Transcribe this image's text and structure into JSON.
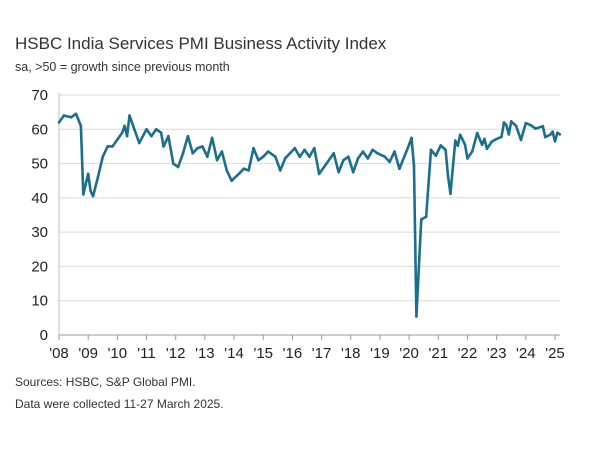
{
  "chart_data": {
    "type": "line",
    "title": "HSBC India Services PMI Business Activity Index",
    "subtitle": "sa, >50 = growth since previous month",
    "xlabel": "",
    "ylabel": "",
    "ylim": [
      0,
      70
    ],
    "yticks": [
      "0",
      "10",
      "20",
      "30",
      "40",
      "50",
      "60",
      "70"
    ],
    "xticks": [
      "'08",
      "'09",
      "'10",
      "'11",
      "'12",
      "'13",
      "'14",
      "'15",
      "'16",
      "'17",
      "'18",
      "'19",
      "'20",
      "'21",
      "'22",
      "'23",
      "'24",
      "'25"
    ],
    "grid": true,
    "line_color": "#1b6f8c",
    "series": [
      {
        "x": [
          "2008-01",
          "2008-03",
          "2008-06",
          "2008-08",
          "2008-10",
          "2008-11",
          "2009-01",
          "2009-02",
          "2009-03",
          "2009-05",
          "2009-07",
          "2009-09",
          "2009-11",
          "2010-01",
          "2010-03",
          "2010-04",
          "2010-05",
          "2010-06",
          "2010-08",
          "2010-10",
          "2011-01",
          "2011-03",
          "2011-05",
          "2011-07",
          "2011-08",
          "2011-10",
          "2011-12",
          "2012-02",
          "2012-04",
          "2012-06",
          "2012-08",
          "2012-10",
          "2012-12",
          "2013-02",
          "2013-04",
          "2013-06",
          "2013-08",
          "2013-10",
          "2013-12",
          "2014-03",
          "2014-05",
          "2014-07",
          "2014-09",
          "2014-11",
          "2015-01",
          "2015-03",
          "2015-06",
          "2015-08",
          "2015-10",
          "2015-12",
          "2016-02",
          "2016-04",
          "2016-06",
          "2016-08",
          "2016-10",
          "2016-12",
          "2017-03",
          "2017-06",
          "2017-08",
          "2017-10",
          "2017-12",
          "2018-02",
          "2018-04",
          "2018-06",
          "2018-08",
          "2018-10",
          "2018-12",
          "2019-03",
          "2019-05",
          "2019-07",
          "2019-09",
          "2019-11",
          "2020-01",
          "2020-02",
          "2020-03",
          "2020-04",
          "2020-06",
          "2020-08",
          "2020-10",
          "2020-12",
          "2021-02",
          "2021-04",
          "2021-05",
          "2021-06",
          "2021-08",
          "2021-09",
          "2021-10",
          "2021-12",
          "2022-01",
          "2022-03",
          "2022-05",
          "2022-07",
          "2022-08",
          "2022-09",
          "2022-11",
          "2023-01",
          "2023-03",
          "2023-04",
          "2023-05",
          "2023-06",
          "2023-07",
          "2023-09",
          "2023-11",
          "2024-01",
          "2024-03",
          "2024-05",
          "2024-08",
          "2024-09",
          "2024-11",
          "2024-12",
          "2025-01",
          "2025-02",
          "2025-03"
        ],
        "y": [
          62,
          64,
          63.5,
          64.5,
          61,
          41,
          47,
          42,
          40.5,
          46,
          52,
          55,
          55,
          57,
          59,
          61,
          58,
          64,
          60,
          56,
          60,
          58,
          60,
          59,
          55,
          58,
          50,
          49,
          53,
          58,
          53,
          54.5,
          55,
          52,
          57.5,
          51,
          53.5,
          48,
          45,
          47,
          48.5,
          48,
          54.5,
          51,
          52,
          53.5,
          52,
          48,
          51.5,
          53,
          54.5,
          52,
          54,
          52,
          54.5,
          47,
          50,
          53,
          47.5,
          51,
          52,
          47.5,
          51.5,
          53.5,
          51.5,
          54,
          53,
          52,
          50.5,
          53.5,
          48.5,
          52,
          55.5,
          57.5,
          49.3,
          5.4,
          33.7,
          34.5,
          54,
          52.3,
          55.3,
          54,
          46.4,
          41.2,
          56.7,
          55.2,
          58.4,
          55.5,
          51.5,
          53.6,
          58.9,
          55.5,
          57.2,
          54.3,
          56.4,
          57.2,
          57.8,
          62,
          61.2,
          58.5,
          62.3,
          61,
          56.9,
          61.8,
          61.2,
          60.2,
          60.9,
          57.7,
          58.4,
          59.3,
          56.5,
          59,
          58.5
        ]
      }
    ]
  },
  "footer": {
    "sources": "Sources: HSBC, S&P Global PMI.",
    "collection": "Data were collected 11-27 March 2025."
  }
}
